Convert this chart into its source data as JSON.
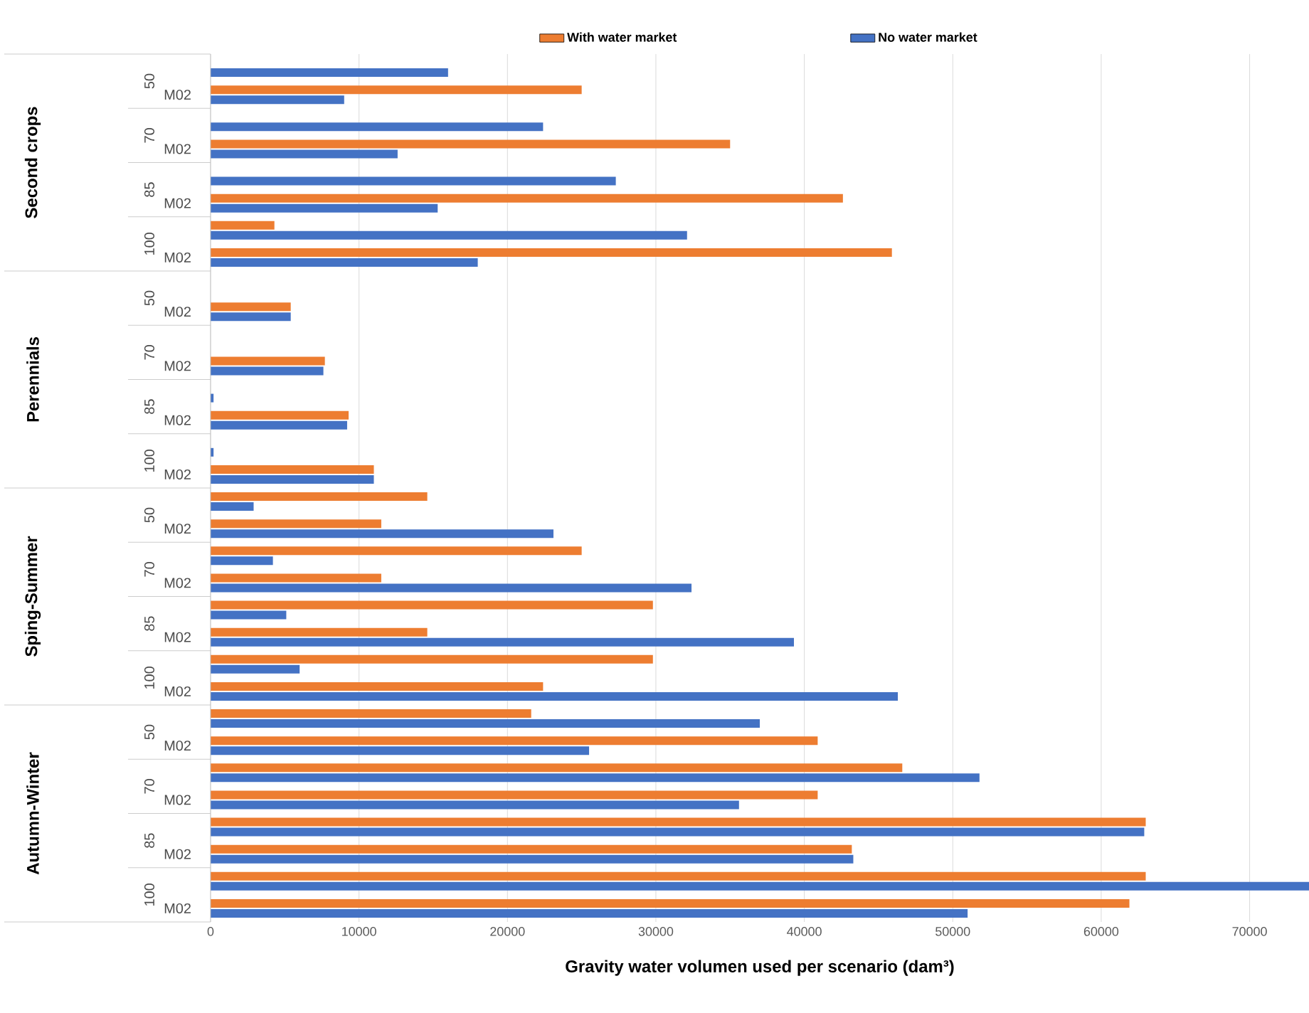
{
  "chart_data": {
    "type": "bar",
    "orientation": "horizontal",
    "xlabel": "Gravity water volumen used per scenario (dam³)",
    "categories": [
      null,
      "M02",
      null,
      "M02",
      null,
      "M02",
      null,
      "M02",
      null,
      "M02",
      null,
      "M02",
      null,
      "M02",
      null,
      "M02",
      null,
      "M02",
      null,
      "M02",
      null,
      "M02",
      null,
      "M02",
      null,
      "M02",
      null,
      "M02",
      null,
      "M02",
      null,
      "M02"
    ],
    "annotations": [
      "Second crops",
      "50",
      "70",
      "85",
      "100",
      "Perennials",
      "50",
      "70",
      "85",
      "100",
      "Sping-Summer",
      "50",
      "70",
      "85",
      "100",
      "Autumn-Winter",
      "50",
      "70",
      "85",
      "100"
    ],
    "series": [
      {
        "name": "With water market",
        "color": "#ed7d31",
        "values": [
          null,
          25000,
          null,
          35000,
          null,
          42600,
          4300,
          45900,
          null,
          5400,
          null,
          7700,
          null,
          9300,
          null,
          11000,
          14600,
          11500,
          25000,
          11500,
          29800,
          14600,
          29800,
          22400,
          21600,
          40900,
          46600,
          40900,
          63000,
          43200,
          63000,
          61900
        ]
      },
      {
        "name": "No water market",
        "color": "#4472c4",
        "values": [
          16000,
          9000,
          22400,
          12600,
          27300,
          15300,
          32100,
          18000,
          null,
          5400,
          null,
          7600,
          200,
          9200,
          200,
          11000,
          2900,
          23100,
          4200,
          32400,
          5100,
          39300,
          6000,
          46300,
          37000,
          25500,
          51800,
          35600,
          62900,
          43300,
          74000,
          51000
        ]
      }
    ],
    "xlim": [
      0,
      74000
    ],
    "xticks": [
      0,
      10000,
      20000,
      30000,
      40000,
      50000,
      60000,
      70000
    ],
    "grid": "x",
    "legend": "top"
  }
}
